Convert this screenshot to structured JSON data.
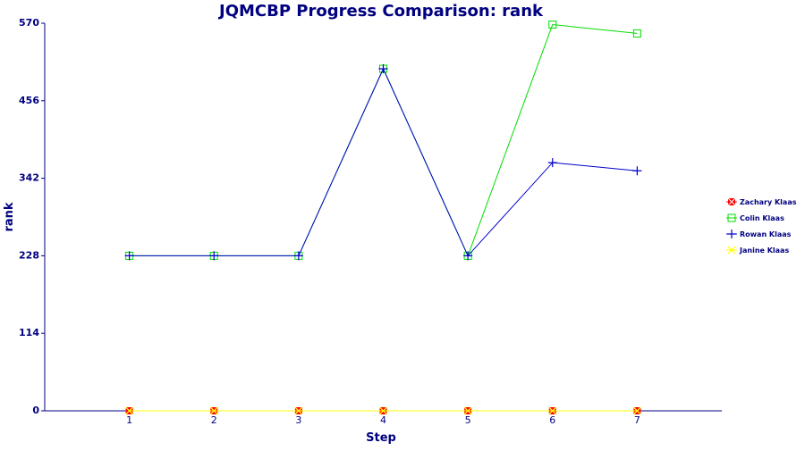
{
  "chart_data": {
    "type": "line",
    "title": "JQMCBP Progress Comparison: rank",
    "xlabel": "Step",
    "ylabel": "rank",
    "x": [
      1,
      2,
      3,
      4,
      5,
      6,
      7
    ],
    "x_ticks": [
      "1",
      "2",
      "3",
      "4",
      "5",
      "6",
      "7"
    ],
    "xlim": [
      0,
      8
    ],
    "ylim": [
      0,
      570
    ],
    "y_ticks": [
      "0",
      "114",
      "228",
      "342",
      "456",
      "570"
    ],
    "grid": false,
    "legend_position": "right",
    "series": [
      {
        "name": "Zachary Klaas",
        "values": [
          0,
          0,
          0,
          0,
          0,
          0,
          0
        ],
        "color": "#ff0000",
        "marker": "square-x"
      },
      {
        "name": "Colin Klaas",
        "values": [
          228,
          228,
          228,
          503,
          228,
          568,
          555
        ],
        "color": "#00dd00",
        "marker": "open-square"
      },
      {
        "name": "Rowan Klaas",
        "values": [
          228,
          228,
          228,
          503,
          228,
          365,
          353
        ],
        "color": "#0000cc",
        "marker": "plus"
      },
      {
        "name": "Janine Klaas",
        "values": [
          0,
          0,
          0,
          0,
          0,
          0,
          0
        ],
        "color": "#ffff00",
        "marker": "x"
      }
    ]
  }
}
